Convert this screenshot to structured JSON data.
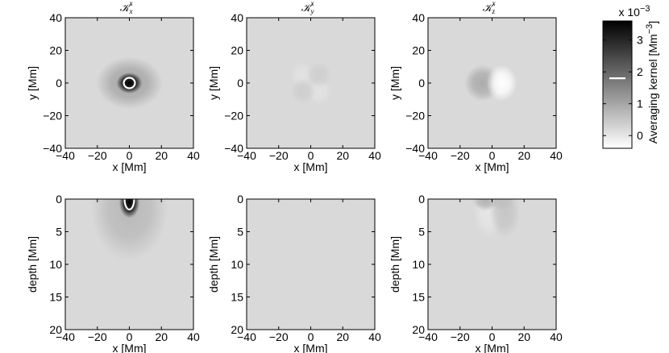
{
  "chart_data": [
    {
      "type": "heatmap",
      "panel": "Kx_xy",
      "title": {
        "main": "𝒦",
        "sub": "x",
        "sup": "x"
      },
      "xlabel": "x [Mm]",
      "ylabel": "y [Mm]",
      "xlim": [
        -40,
        40
      ],
      "ylim": [
        -40,
        40
      ],
      "xticks": [
        "−40",
        "−20",
        "0",
        "20",
        "40"
      ],
      "yticks": [
        "40",
        "20",
        "0",
        "−20",
        "−40"
      ],
      "background_value": 0.2,
      "features": [
        {
          "x": 0,
          "y": 0,
          "rx": 5,
          "ry": 4,
          "value": 3.6
        },
        {
          "x": 0,
          "y": 0,
          "rx": 13,
          "ry": 10,
          "value": 1.0
        }
      ],
      "contour": {
        "x": 0,
        "y": 0,
        "rx": 3.5,
        "ry": 3.2,
        "value": 1.8
      }
    },
    {
      "type": "heatmap",
      "panel": "Ky_xy",
      "title": {
        "main": "𝒦",
        "sub": "y",
        "sup": "x"
      },
      "xlabel": "x [Mm]",
      "ylabel": "y [Mm]",
      "xlim": [
        -40,
        40
      ],
      "ylim": [
        -40,
        40
      ],
      "xticks": [
        "−40",
        "−20",
        "0",
        "20",
        "40"
      ],
      "yticks": [
        "40",
        "20",
        "0",
        "−20",
        "−40"
      ],
      "background_value": 0.2,
      "features": [
        {
          "x": -5,
          "y": 5,
          "rx": 5,
          "ry": 5,
          "value": 0.05
        },
        {
          "x": 5,
          "y": -5,
          "rx": 5,
          "ry": 5,
          "value": 0.05
        },
        {
          "x": 5,
          "y": 5,
          "rx": 5,
          "ry": 5,
          "value": 0.35
        },
        {
          "x": -5,
          "y": -5,
          "rx": 5,
          "ry": 5,
          "value": 0.35
        }
      ]
    },
    {
      "type": "heatmap",
      "panel": "Kz_xy",
      "title": {
        "main": "𝒦",
        "sub": "z",
        "sup": "x"
      },
      "xlabel": "x [Mm]",
      "ylabel": "y [Mm]",
      "xlim": [
        -40,
        40
      ],
      "ylim": [
        -40,
        40
      ],
      "xticks": [
        "−40",
        "−20",
        "0",
        "20",
        "40"
      ],
      "yticks": [
        "40",
        "20",
        "0",
        "−20",
        "−40"
      ],
      "background_value": 0.2,
      "features": [
        {
          "x": -6,
          "y": 0,
          "rx": 7,
          "ry": 7,
          "value": 0.9
        },
        {
          "x": 6,
          "y": 0,
          "rx": 6,
          "ry": 7,
          "value": -0.4
        }
      ]
    },
    {
      "type": "heatmap",
      "panel": "Kx_xz",
      "xlabel": "x [Mm]",
      "ylabel": "depth [Mm]",
      "xlim": [
        -40,
        40
      ],
      "ylim": [
        20,
        0
      ],
      "xticks": [
        "−40",
        "−20",
        "0",
        "20",
        "40"
      ],
      "yticks": [
        "0",
        "5",
        "10",
        "15",
        "20"
      ],
      "background_value": 0.2,
      "features": [
        {
          "x": 0,
          "y": 0.5,
          "rx": 4,
          "ry": 1.5,
          "value": 3.6
        },
        {
          "x": 0,
          "y": 1.5,
          "rx": 15,
          "ry": 5,
          "value": 0.7
        }
      ],
      "contour": {
        "x": 0,
        "y": 0,
        "rx": 3,
        "ry": 1.6,
        "value": 1.8
      }
    },
    {
      "type": "heatmap",
      "panel": "Ky_xz",
      "xlabel": "x [Mm]",
      "ylabel": "depth [Mm]",
      "xlim": [
        -40,
        40
      ],
      "ylim": [
        20,
        0
      ],
      "xticks": [
        "−40",
        "−20",
        "0",
        "20",
        "40"
      ],
      "yticks": [
        "0",
        "5",
        "10",
        "15",
        "20"
      ],
      "background_value": 0.2,
      "features": []
    },
    {
      "type": "heatmap",
      "panel": "Kz_xz",
      "xlabel": "x [Mm]",
      "ylabel": "depth [Mm]",
      "xlim": [
        -40,
        40
      ],
      "ylim": [
        20,
        0
      ],
      "xticks": [
        "−40",
        "−20",
        "0",
        "20",
        "40"
      ],
      "yticks": [
        "0",
        "5",
        "10",
        "15",
        "20"
      ],
      "background_value": 0.2,
      "features": [
        {
          "x": -4,
          "y": 0.2,
          "rx": 5,
          "ry": 1.0,
          "value": 0.8
        },
        {
          "x": 6,
          "y": 0.2,
          "rx": 5,
          "ry": 1.0,
          "value": 0.6
        },
        {
          "x": -2,
          "y": 2.0,
          "rx": 6,
          "ry": 2.5,
          "value": 0.0
        },
        {
          "x": 8,
          "y": 2.0,
          "rx": 6,
          "ry": 2.5,
          "value": 0.5
        }
      ]
    }
  ],
  "colorbar": {
    "label": "Averaging kernel [Mm",
    "label_sup": "−3",
    "label_end": "]",
    "multiplier": "x 10",
    "multiplier_exp": "−3",
    "range": [
      -0.4,
      3.6
    ],
    "ticks": [
      "3",
      "2",
      "1",
      "0"
    ],
    "tick_values": [
      3,
      2,
      1,
      0
    ],
    "marker_value": 1.8,
    "colormap": "gray, white = low, black = high"
  }
}
